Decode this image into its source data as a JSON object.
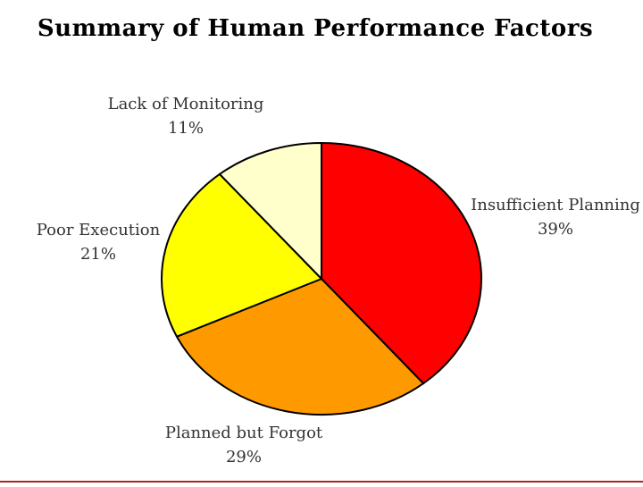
{
  "chart_data": {
    "type": "pie",
    "title": "Summary of Human Performance Factors",
    "slices": [
      {
        "name": "Insufficient Planning",
        "value": 39,
        "label": "39%",
        "color": "#ff0000"
      },
      {
        "name": "Planned but Forgot",
        "value": 29,
        "label": "29%",
        "color": "#ff9900"
      },
      {
        "name": "Poor Execution",
        "value": 21,
        "label": "21%",
        "color": "#ffff00"
      },
      {
        "name": "Lack of Monitoring",
        "value": 11,
        "label": "11%",
        "color": "#ffffcc"
      }
    ],
    "start": "12 o'clock",
    "direction": "clockwise",
    "legend": "none"
  }
}
